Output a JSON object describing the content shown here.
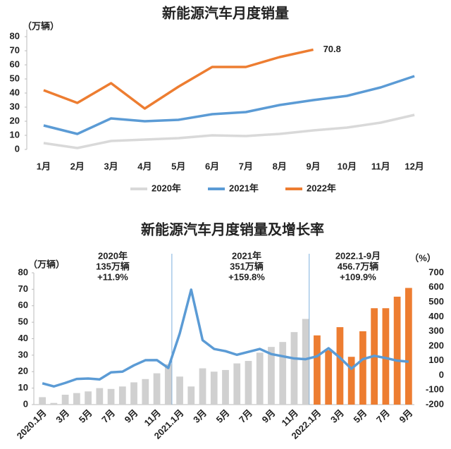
{
  "chart_data": [
    {
      "type": "line",
      "title": "新能源汽车月度销量",
      "ylabel": "（万辆）",
      "categories": [
        "1月",
        "2月",
        "3月",
        "4月",
        "5月",
        "6月",
        "7月",
        "8月",
        "9月",
        "10月",
        "11月",
        "12月"
      ],
      "series": [
        {
          "name": "2020年",
          "color": "#d9d9d9",
          "values": [
            4.5,
            1,
            6,
            7,
            8,
            10,
            9.5,
            11,
            13.5,
            15.5,
            19,
            24.5
          ]
        },
        {
          "name": "2021年",
          "color": "#5b9bd5",
          "values": [
            17,
            11,
            22,
            20,
            21,
            25,
            26.5,
            31.5,
            35,
            38,
            44,
            52
          ]
        },
        {
          "name": "2022年",
          "color": "#ed7d31",
          "values": [
            42,
            33,
            47,
            29,
            44.5,
            58.5,
            58.5,
            65.5,
            70.8,
            null,
            null,
            null
          ]
        }
      ],
      "ylim": [
        0,
        80
      ],
      "yticks": [
        0,
        10,
        20,
        30,
        40,
        50,
        60,
        70,
        80
      ],
      "legend": "bottom"
    },
    {
      "type": "bar-line",
      "title": "新能源汽车月度销量及增长率",
      "ylabel": "（万辆）",
      "y2label": "（%）",
      "categories": [
        "2020.1月",
        null,
        "3月",
        null,
        "5月",
        null,
        "7月",
        null,
        "9月",
        null,
        "11月",
        null,
        "2021.1月",
        null,
        "3月",
        null,
        "5月",
        null,
        "7月",
        null,
        "9月",
        null,
        "11月",
        null,
        "2022.1月",
        null,
        "3月",
        null,
        "5月",
        null,
        "7月",
        null,
        "9月"
      ],
      "annotations": [
        [
          "2020年",
          "135万辆",
          "+11.9%"
        ],
        [
          "2021年",
          "351万辆",
          "+159.8%"
        ],
        [
          "2022.1-9月",
          "456.7万辆",
          "+109.9%"
        ]
      ],
      "series": [
        {
          "type": "bar",
          "values": [
            4.5,
            1,
            6,
            7,
            8,
            10,
            9.5,
            11,
            13.5,
            15.5,
            19,
            24.5,
            17,
            11,
            22,
            20,
            21,
            25,
            26.5,
            31.5,
            35,
            38,
            44,
            52,
            42,
            33,
            47,
            29,
            44.5,
            58.5,
            58.5,
            65.5,
            70.8
          ],
          "colors": [
            "#d0d0d0",
            "#d0d0d0",
            "#d0d0d0",
            "#d0d0d0",
            "#d0d0d0",
            "#d0d0d0",
            "#d0d0d0",
            "#d0d0d0",
            "#d0d0d0",
            "#d0d0d0",
            "#d0d0d0",
            "#d0d0d0",
            "#d0d0d0",
            "#d0d0d0",
            "#d0d0d0",
            "#d0d0d0",
            "#d0d0d0",
            "#d0d0d0",
            "#d0d0d0",
            "#d0d0d0",
            "#d0d0d0",
            "#d0d0d0",
            "#d0d0d0",
            "#d0d0d0",
            "#ed7d31",
            "#ed7d31",
            "#ed7d31",
            "#ed7d31",
            "#ed7d31",
            "#ed7d31",
            "#ed7d31",
            "#ed7d31",
            "#ed7d31"
          ]
        },
        {
          "type": "line",
          "axis": "y2",
          "color": "#5b9bd5",
          "values": [
            -55,
            -76,
            -52,
            -25,
            -22,
            -28,
            20,
            25,
            68,
            103,
            104,
            50,
            285,
            585,
            240,
            180,
            165,
            140,
            160,
            180,
            145,
            130,
            115,
            110,
            130,
            185,
            120,
            45,
            110,
            133,
            118,
            100,
            93
          ]
        }
      ],
      "ylim": [
        0,
        80
      ],
      "yticks": [
        0,
        10,
        20,
        30,
        40,
        50,
        60,
        70,
        80
      ],
      "y2lim": [
        -200,
        700
      ],
      "y2ticks": [
        -200,
        -100,
        0,
        100,
        200,
        300,
        400,
        500,
        600,
        700
      ]
    }
  ]
}
